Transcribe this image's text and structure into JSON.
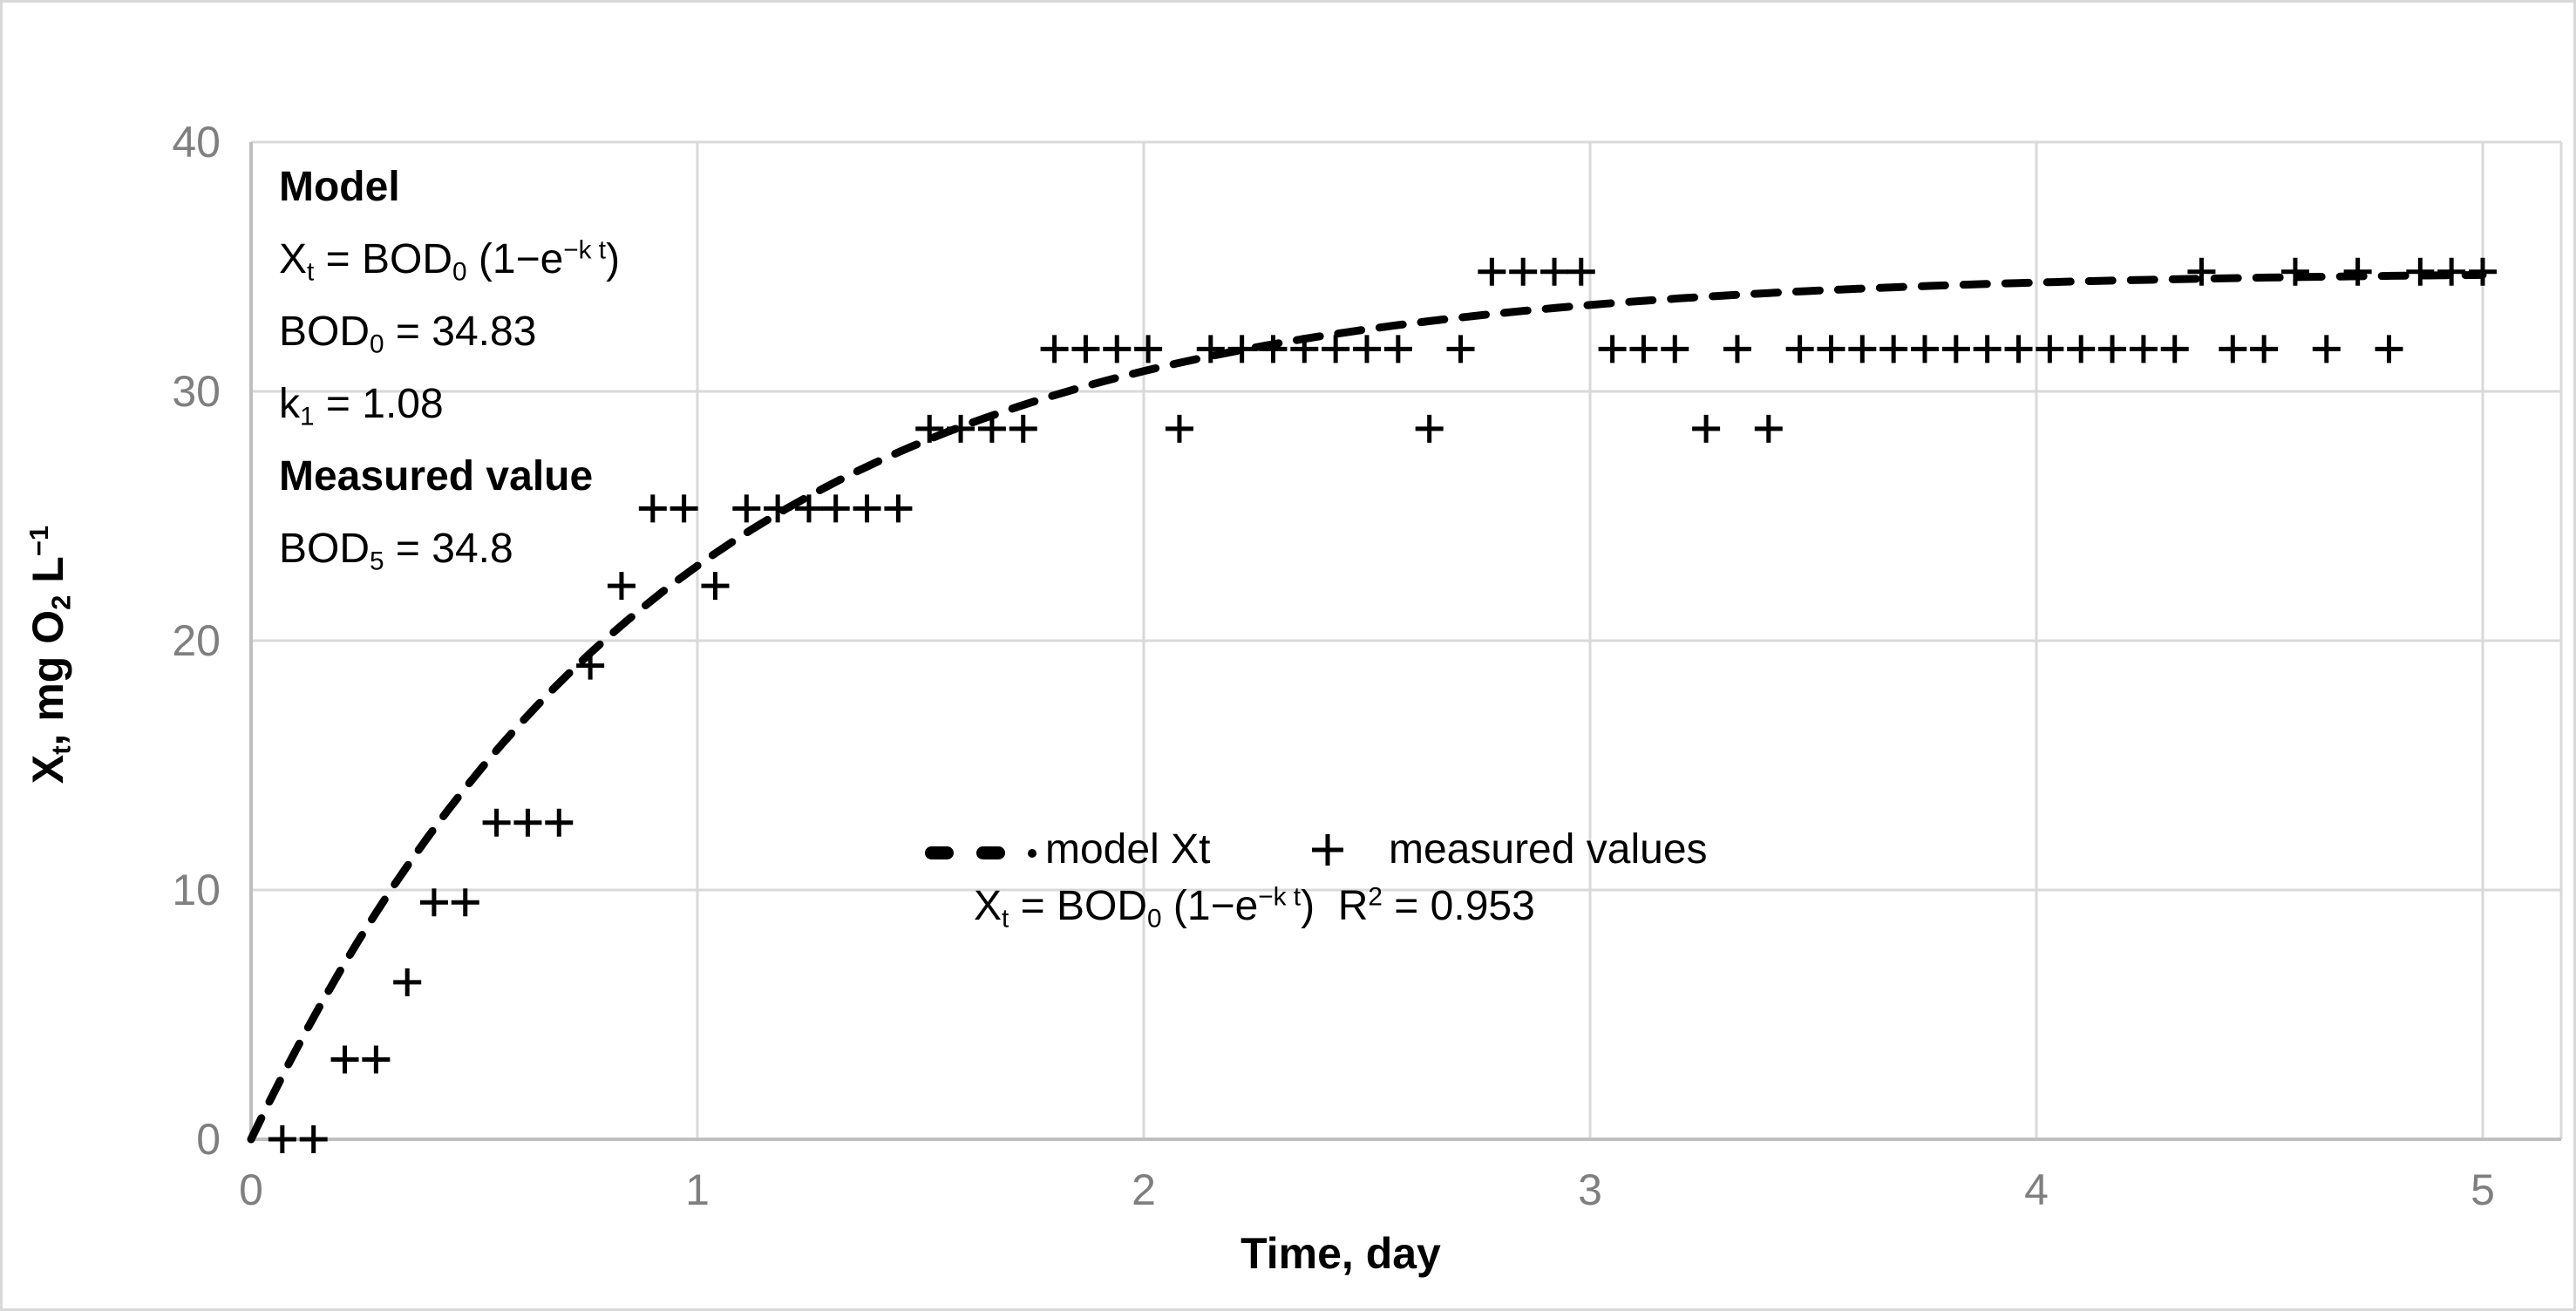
{
  "chart_data": {
    "type": "scatter",
    "title": "",
    "xlabel": "Time, day",
    "ylabel": "Xt, mg O2 L-1",
    "xlim": [
      0,
      5
    ],
    "ylim": [
      0,
      40
    ],
    "x_ticks": [
      0,
      1,
      2,
      3,
      4,
      5
    ],
    "y_ticks": [
      0,
      10,
      20,
      30,
      40
    ],
    "grid": true,
    "legend_position": "center",
    "series": [
      {
        "name": "model Xt",
        "kind": "dashed-line",
        "model_formula": "Xt = BOD0 (1-e^(-k t))",
        "BOD0": 34.83,
        "k1": 1.08
      },
      {
        "name": "measured values",
        "kind": "plus-markers",
        "points": [
          [
            0.07,
            0
          ],
          [
            0.14,
            0
          ],
          [
            0.21,
            3.2
          ],
          [
            0.28,
            3.2
          ],
          [
            0.35,
            6.3
          ],
          [
            0.41,
            9.5
          ],
          [
            0.48,
            9.5
          ],
          [
            0.55,
            12.7
          ],
          [
            0.62,
            12.7
          ],
          [
            0.69,
            12.7
          ],
          [
            0.76,
            19.0
          ],
          [
            0.83,
            22.2
          ],
          [
            0.9,
            25.3
          ],
          [
            0.97,
            25.3
          ],
          [
            1.04,
            22.2
          ],
          [
            1.11,
            25.3
          ],
          [
            1.18,
            25.3
          ],
          [
            1.25,
            25.3
          ],
          [
            1.31,
            25.3
          ],
          [
            1.38,
            25.3
          ],
          [
            1.45,
            25.3
          ],
          [
            1.52,
            28.5
          ],
          [
            1.59,
            28.5
          ],
          [
            1.66,
            28.5
          ],
          [
            1.73,
            28.5
          ],
          [
            1.8,
            31.7
          ],
          [
            1.87,
            31.7
          ],
          [
            1.94,
            31.7
          ],
          [
            2.01,
            31.7
          ],
          [
            2.08,
            28.5
          ],
          [
            2.15,
            31.7
          ],
          [
            2.22,
            31.7
          ],
          [
            2.29,
            31.7
          ],
          [
            2.36,
            31.7
          ],
          [
            2.43,
            31.7
          ],
          [
            2.5,
            31.7
          ],
          [
            2.57,
            31.7
          ],
          [
            2.64,
            28.5
          ],
          [
            2.71,
            31.7
          ],
          [
            2.78,
            34.8
          ],
          [
            2.85,
            34.8
          ],
          [
            2.92,
            34.8
          ],
          [
            2.98,
            34.8
          ],
          [
            3.05,
            31.7
          ],
          [
            3.12,
            31.7
          ],
          [
            3.19,
            31.7
          ],
          [
            3.26,
            28.5
          ],
          [
            3.33,
            31.7
          ],
          [
            3.4,
            28.5
          ],
          [
            3.47,
            31.7
          ],
          [
            3.54,
            31.7
          ],
          [
            3.61,
            31.7
          ],
          [
            3.68,
            31.7
          ],
          [
            3.75,
            31.7
          ],
          [
            3.82,
            31.7
          ],
          [
            3.89,
            31.7
          ],
          [
            3.96,
            31.7
          ],
          [
            4.03,
            31.7
          ],
          [
            4.1,
            31.7
          ],
          [
            4.17,
            31.7
          ],
          [
            4.24,
            31.7
          ],
          [
            4.31,
            31.7
          ],
          [
            4.37,
            34.8
          ],
          [
            4.44,
            31.7
          ],
          [
            4.51,
            31.7
          ],
          [
            4.58,
            34.8
          ],
          [
            4.65,
            31.7
          ],
          [
            4.72,
            34.8
          ],
          [
            4.79,
            31.7
          ],
          [
            4.86,
            34.8
          ],
          [
            4.93,
            34.8
          ],
          [
            5.0,
            34.8
          ]
        ]
      }
    ],
    "r_squared": 0.953
  },
  "axes": {
    "x_title": [
      {
        "t": "Time, day"
      }
    ],
    "y_title": [
      {
        "t": "X"
      },
      {
        "t": "t",
        "s": "sub"
      },
      {
        "t": ", mg O"
      },
      {
        "t": "2",
        "s": "sub"
      },
      {
        "t": " L"
      },
      {
        "t": "−1",
        "s": "sup"
      }
    ]
  },
  "annotation": {
    "lines": [
      [
        {
          "t": "Model",
          "b": 1
        }
      ],
      [
        {
          "t": "X"
        },
        {
          "t": "t",
          "s": "sub"
        },
        {
          "t": " = BOD"
        },
        {
          "t": "0",
          "s": "sub"
        },
        {
          "t": " (1−e"
        },
        {
          "t": "−k t",
          "s": "sup"
        },
        {
          "t": ")"
        }
      ],
      [
        {
          "t": "BOD"
        },
        {
          "t": "0",
          "s": "sub"
        },
        {
          "t": " = 34.83"
        }
      ],
      [
        {
          "t": "k"
        },
        {
          "t": "1",
          "s": "sub"
        },
        {
          "t": " = 1.08"
        }
      ],
      [
        {
          "t": "Measured value",
          "b": 1
        }
      ],
      [
        {
          "t": "BOD"
        },
        {
          "t": "5",
          "s": "sub"
        },
        {
          "t": " = 34.8"
        }
      ]
    ]
  },
  "legend": {
    "model_label": "model Xt",
    "measured_label": "measured values",
    "equation": [
      {
        "t": "X"
      },
      {
        "t": "t",
        "s": "sub"
      },
      {
        "t": " = BOD"
      },
      {
        "t": "0",
        "s": "sub"
      },
      {
        "t": " (1−e"
      },
      {
        "t": "−k t",
        "s": "sup"
      },
      {
        "t": ")  R"
      },
      {
        "t": "2",
        "s": "sup"
      },
      {
        "t": " = 0.953"
      }
    ]
  },
  "colors": {
    "background": "#ffffff",
    "border": "#d9d9d9",
    "gridline": "#d9d9d9",
    "axis_line": "#bfbfbf",
    "tick_label": "#7f7f7f",
    "text": "#000000",
    "series": "#000000"
  }
}
